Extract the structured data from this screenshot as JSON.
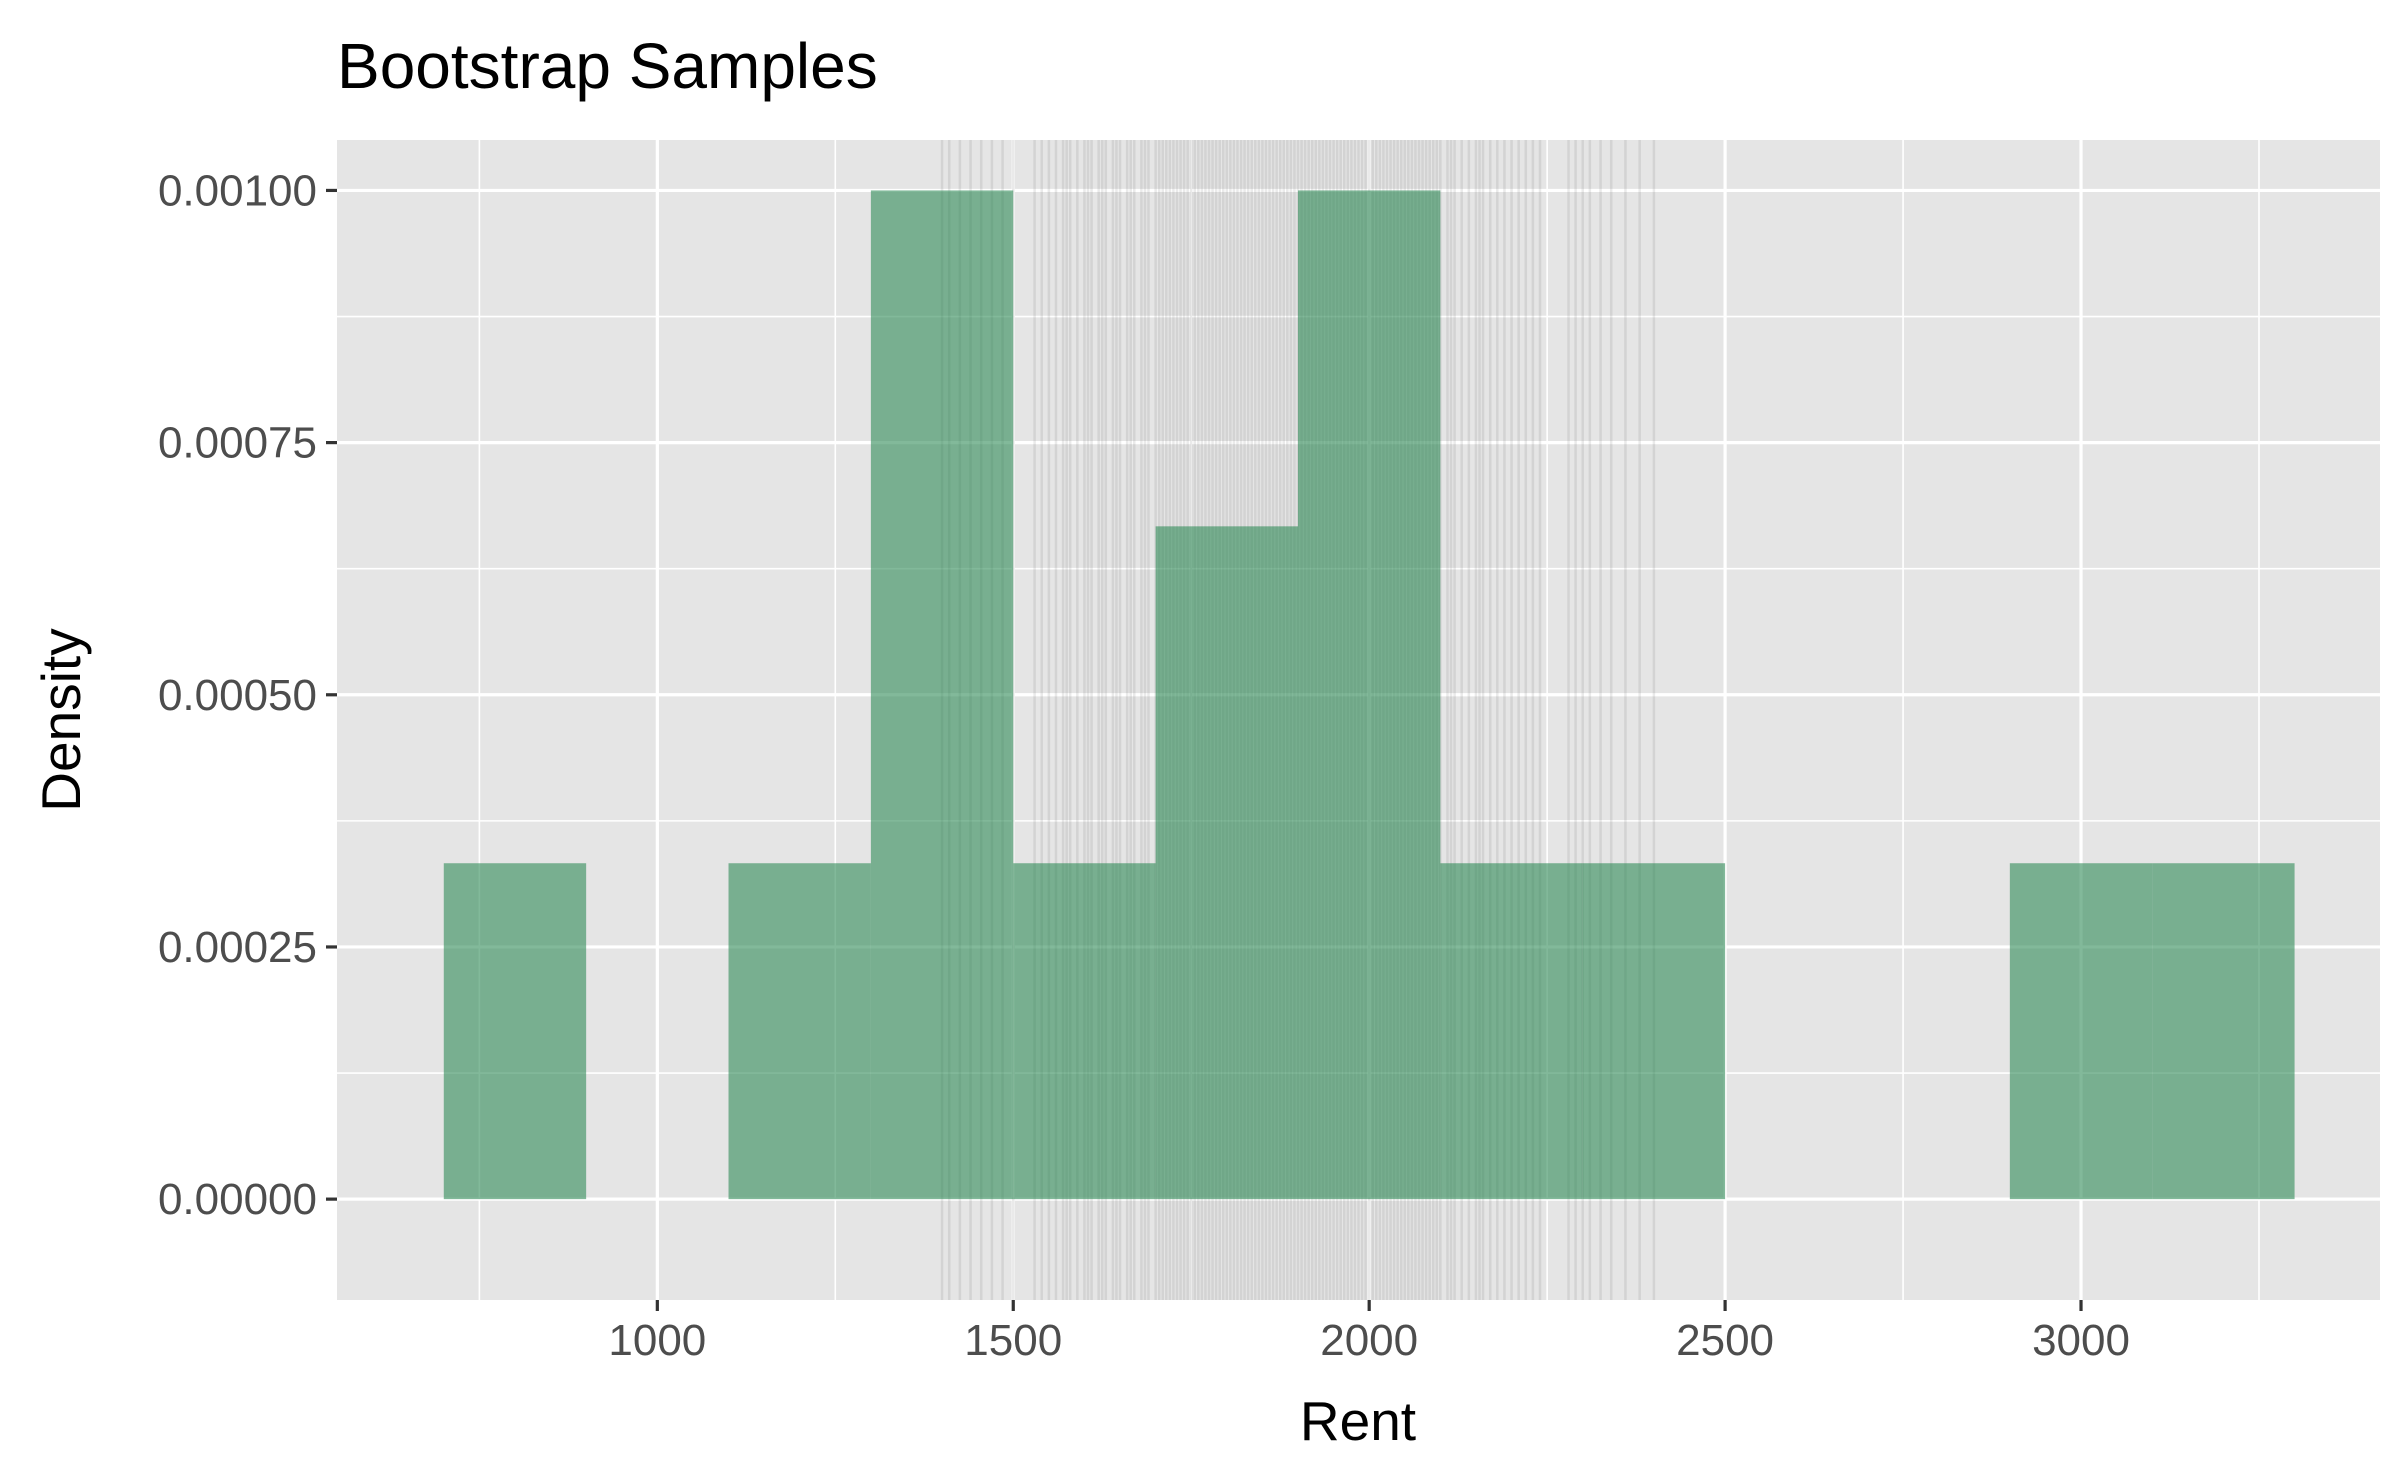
{
  "chart_data": {
    "type": "bar",
    "title": "Bootstrap Samples",
    "xlabel": "Rent",
    "ylabel": "Density",
    "xlim": [
      550,
      3420
    ],
    "ylim": [
      -0.0001,
      0.00105
    ],
    "x_ticks": [
      1000,
      1500,
      2000,
      2500,
      3000
    ],
    "x_tick_labels": [
      "1000",
      "1500",
      "2000",
      "2500",
      "3000"
    ],
    "y_ticks": [
      0,
      0.00025,
      0.0005,
      0.00075,
      0.001
    ],
    "y_tick_labels": [
      "0.00000",
      "0.00025",
      "0.00050",
      "0.00075",
      "0.00100"
    ],
    "grid": true,
    "panel_color": "#e5e5e5",
    "bar_color": "#2e8b57",
    "bins": [
      {
        "x_start": 700,
        "x_end": 900,
        "density": 0.000333
      },
      {
        "x_start": 1100,
        "x_end": 1300,
        "density": 0.000333
      },
      {
        "x_start": 1300,
        "x_end": 1500,
        "density": 0.001
      },
      {
        "x_start": 1500,
        "x_end": 1700,
        "density": 0.000333
      },
      {
        "x_start": 1700,
        "x_end": 1900,
        "density": 0.000667
      },
      {
        "x_start": 1900,
        "x_end": 2100,
        "density": 0.001
      },
      {
        "x_start": 2100,
        "x_end": 2300,
        "density": 0.000333
      },
      {
        "x_start": 2300,
        "x_end": 2500,
        "density": 0.000333
      },
      {
        "x_start": 2900,
        "x_end": 3100,
        "density": 0.000333
      },
      {
        "x_start": 3100,
        "x_end": 3300,
        "density": 0.000333
      }
    ],
    "bootstrap_means": [
      1400,
      1410,
      1425,
      1440,
      1455,
      1470,
      1485,
      1500,
      1530,
      1540,
      1550,
      1560,
      1570,
      1575,
      1580,
      1590,
      1600,
      1605,
      1610,
      1620,
      1625,
      1630,
      1640,
      1645,
      1650,
      1660,
      1665,
      1670,
      1680,
      1685,
      1690,
      1700,
      1705,
      1710,
      1715,
      1720,
      1725,
      1730,
      1735,
      1740,
      1745,
      1750,
      1755,
      1760,
      1765,
      1770,
      1775,
      1780,
      1785,
      1790,
      1795,
      1800,
      1805,
      1810,
      1815,
      1820,
      1825,
      1830,
      1835,
      1840,
      1845,
      1850,
      1855,
      1860,
      1865,
      1870,
      1875,
      1880,
      1885,
      1890,
      1895,
      1900,
      1905,
      1910,
      1915,
      1920,
      1925,
      1930,
      1935,
      1940,
      1945,
      1950,
      1955,
      1960,
      1965,
      1970,
      1975,
      1980,
      1985,
      1990,
      1995,
      2000,
      2005,
      2010,
      2015,
      2020,
      2025,
      2030,
      2035,
      2040,
      2045,
      2050,
      2055,
      2060,
      2065,
      2070,
      2075,
      2080,
      2085,
      2090,
      2095,
      2100,
      2110,
      2115,
      2120,
      2130,
      2140,
      2150,
      2155,
      2160,
      2170,
      2180,
      2190,
      2200,
      2210,
      2220,
      2230,
      2240,
      2280,
      2290,
      2300,
      2310,
      2325,
      2340,
      2360,
      2380,
      2400
    ]
  }
}
